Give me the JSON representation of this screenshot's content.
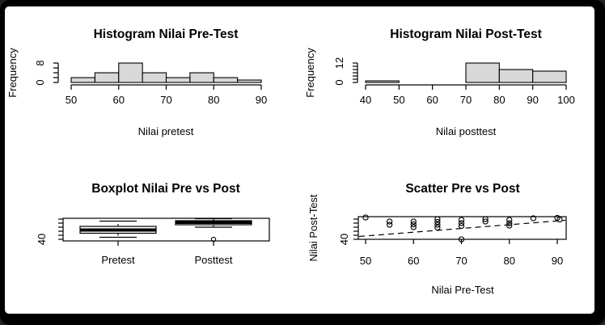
{
  "figure": {
    "background": "#000000",
    "canvas": "#ffffff",
    "bar_fill": "#d8d8d8",
    "line_color": "#000000"
  },
  "chart_data": [
    {
      "type": "bar",
      "subtype": "histogram",
      "title": "Histogram Nilai Pre-Test",
      "xlabel": "Nilai pretest",
      "ylabel": "Frequency",
      "bin_start": 50,
      "bin_width": 5,
      "bin_labels": [
        "50-55",
        "55-60",
        "60-65",
        "65-70",
        "70-75",
        "75-80",
        "80-85",
        "85-90"
      ],
      "values": [
        2,
        4,
        8,
        4,
        2,
        4,
        2,
        1
      ],
      "xticks": [
        50,
        60,
        70,
        80,
        90
      ],
      "yticks": [
        0,
        2,
        4,
        6,
        8
      ],
      "ytick_labels_shown": [
        0,
        8
      ],
      "xlim": [
        50,
        90
      ],
      "ylim": [
        0,
        8
      ],
      "grid": false,
      "legend": "none"
    },
    {
      "type": "bar",
      "subtype": "histogram",
      "title": "Histogram Nilai Post-Test",
      "xlabel": "Nilai posttest",
      "ylabel": "Frequency",
      "bin_start": 40,
      "bin_width": 10,
      "bin_labels": [
        "40-50",
        "50-60",
        "60-70",
        "70-80",
        "80-90",
        "90-100"
      ],
      "values": [
        1,
        0,
        0,
        12,
        8,
        7
      ],
      "xticks": [
        40,
        50,
        60,
        70,
        80,
        90,
        100
      ],
      "yticks": [
        0,
        2,
        4,
        6,
        8,
        10,
        12
      ],
      "ytick_labels_shown": [
        0,
        12
      ],
      "xlim": [
        40,
        100
      ],
      "ylim": [
        0,
        12
      ],
      "grid": false,
      "legend": "none"
    },
    {
      "type": "boxplot",
      "title": "Boxplot Nilai Pre vs Post",
      "xlabel": "",
      "ylabel": "",
      "categories": [
        "Pretest",
        "Posttest"
      ],
      "series": [
        {
          "name": "Pretest",
          "min": 45,
          "q1": 55,
          "median": 63,
          "q3": 72,
          "max": 85,
          "outliers": []
        },
        {
          "name": "Posttest",
          "min": 70,
          "q1": 76,
          "median": 82,
          "q3": 86,
          "max": 91,
          "outliers": [
            40
          ]
        }
      ],
      "yticks": [
        40,
        50,
        60,
        70,
        80,
        90
      ],
      "ytick_labels_shown": [
        40
      ],
      "ylim": [
        36,
        92
      ],
      "grid": false,
      "legend": "none"
    },
    {
      "type": "scatter",
      "title": "Scatter Pre vs Post",
      "xlabel": "Nilai Pre-Test",
      "ylabel": "Nilai Post-Test",
      "points": [
        [
          50,
          94
        ],
        [
          55,
          84
        ],
        [
          55,
          76
        ],
        [
          60,
          84
        ],
        [
          60,
          77
        ],
        [
          60,
          70
        ],
        [
          65,
          90
        ],
        [
          65,
          83
        ],
        [
          65,
          76
        ],
        [
          65,
          69
        ],
        [
          70,
          88
        ],
        [
          70,
          80
        ],
        [
          70,
          73
        ],
        [
          70,
          40
        ],
        [
          75,
          90
        ],
        [
          75,
          84
        ],
        [
          80,
          88
        ],
        [
          80,
          80
        ],
        [
          80,
          74
        ],
        [
          85,
          92
        ],
        [
          90,
          93
        ],
        [
          90.5,
          89
        ]
      ],
      "trend_line": {
        "style": "dashed",
        "x1": 48,
        "y1": 47,
        "x2": 92,
        "y2": 87
      },
      "xticks": [
        50,
        60,
        70,
        80,
        90
      ],
      "yticks": [
        40,
        50,
        60,
        70,
        80,
        90
      ],
      "ytick_labels_shown": [
        40
      ],
      "xlim": [
        48,
        92
      ],
      "ylim": [
        36,
        96
      ],
      "grid": false,
      "legend": "none"
    }
  ]
}
